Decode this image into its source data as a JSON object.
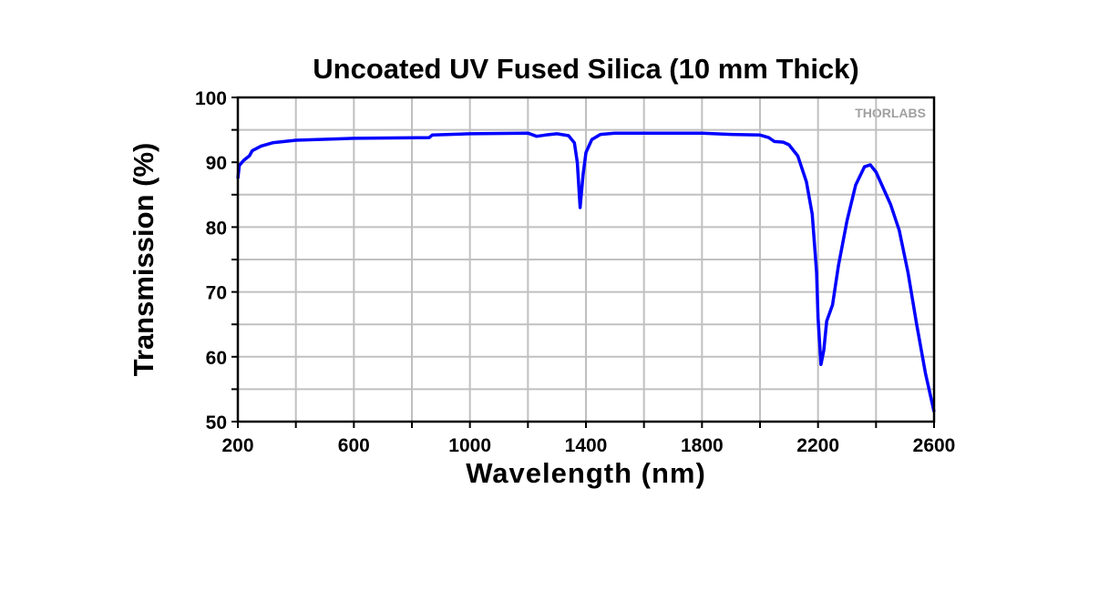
{
  "chart_data": {
    "type": "line",
    "title": "Uncoated UV Fused Silica (10 mm Thick)",
    "xlabel": "Wavelength (nm)",
    "ylabel": "Transmission (%)",
    "xlim": [
      200,
      2600
    ],
    "ylim": [
      50,
      100
    ],
    "xticks": [
      200,
      600,
      1000,
      1400,
      1800,
      2200,
      2600
    ],
    "yticks": [
      50,
      60,
      70,
      80,
      90,
      100
    ],
    "grid": true,
    "watermark": "THORLABS",
    "colors": {
      "series": "#0000ff",
      "grid": "#c0c0c0",
      "axis": "#000000",
      "watermark": "#a0a0a0"
    },
    "series": [
      {
        "x": [
          200,
          205,
          220,
          240,
          250,
          280,
          320,
          400,
          600,
          860,
          870,
          1000,
          1200,
          1230,
          1260,
          1300,
          1340,
          1360,
          1370,
          1380,
          1390,
          1400,
          1420,
          1450,
          1500,
          1800,
          1900,
          2000,
          2030,
          2050,
          2080,
          2100,
          2130,
          2160,
          2180,
          2195,
          2200,
          2210,
          2220,
          2230,
          2250,
          2270,
          2300,
          2330,
          2360,
          2380,
          2400,
          2450,
          2480,
          2510,
          2540,
          2570,
          2600
        ],
        "y": [
          87.5,
          89.5,
          90.3,
          91.0,
          91.8,
          92.5,
          93.0,
          93.4,
          93.7,
          93.8,
          94.2,
          94.4,
          94.5,
          94.0,
          94.2,
          94.4,
          94.1,
          93.0,
          90.0,
          83.0,
          88.0,
          91.5,
          93.5,
          94.3,
          94.5,
          94.5,
          94.3,
          94.2,
          93.8,
          93.2,
          93.1,
          92.7,
          91.0,
          87.0,
          82.0,
          73.0,
          66.0,
          58.8,
          61.0,
          65.5,
          68.0,
          74.0,
          81.0,
          86.5,
          89.3,
          89.6,
          88.5,
          83.5,
          79.5,
          73.0,
          65.0,
          57.5,
          51.5
        ]
      }
    ]
  }
}
